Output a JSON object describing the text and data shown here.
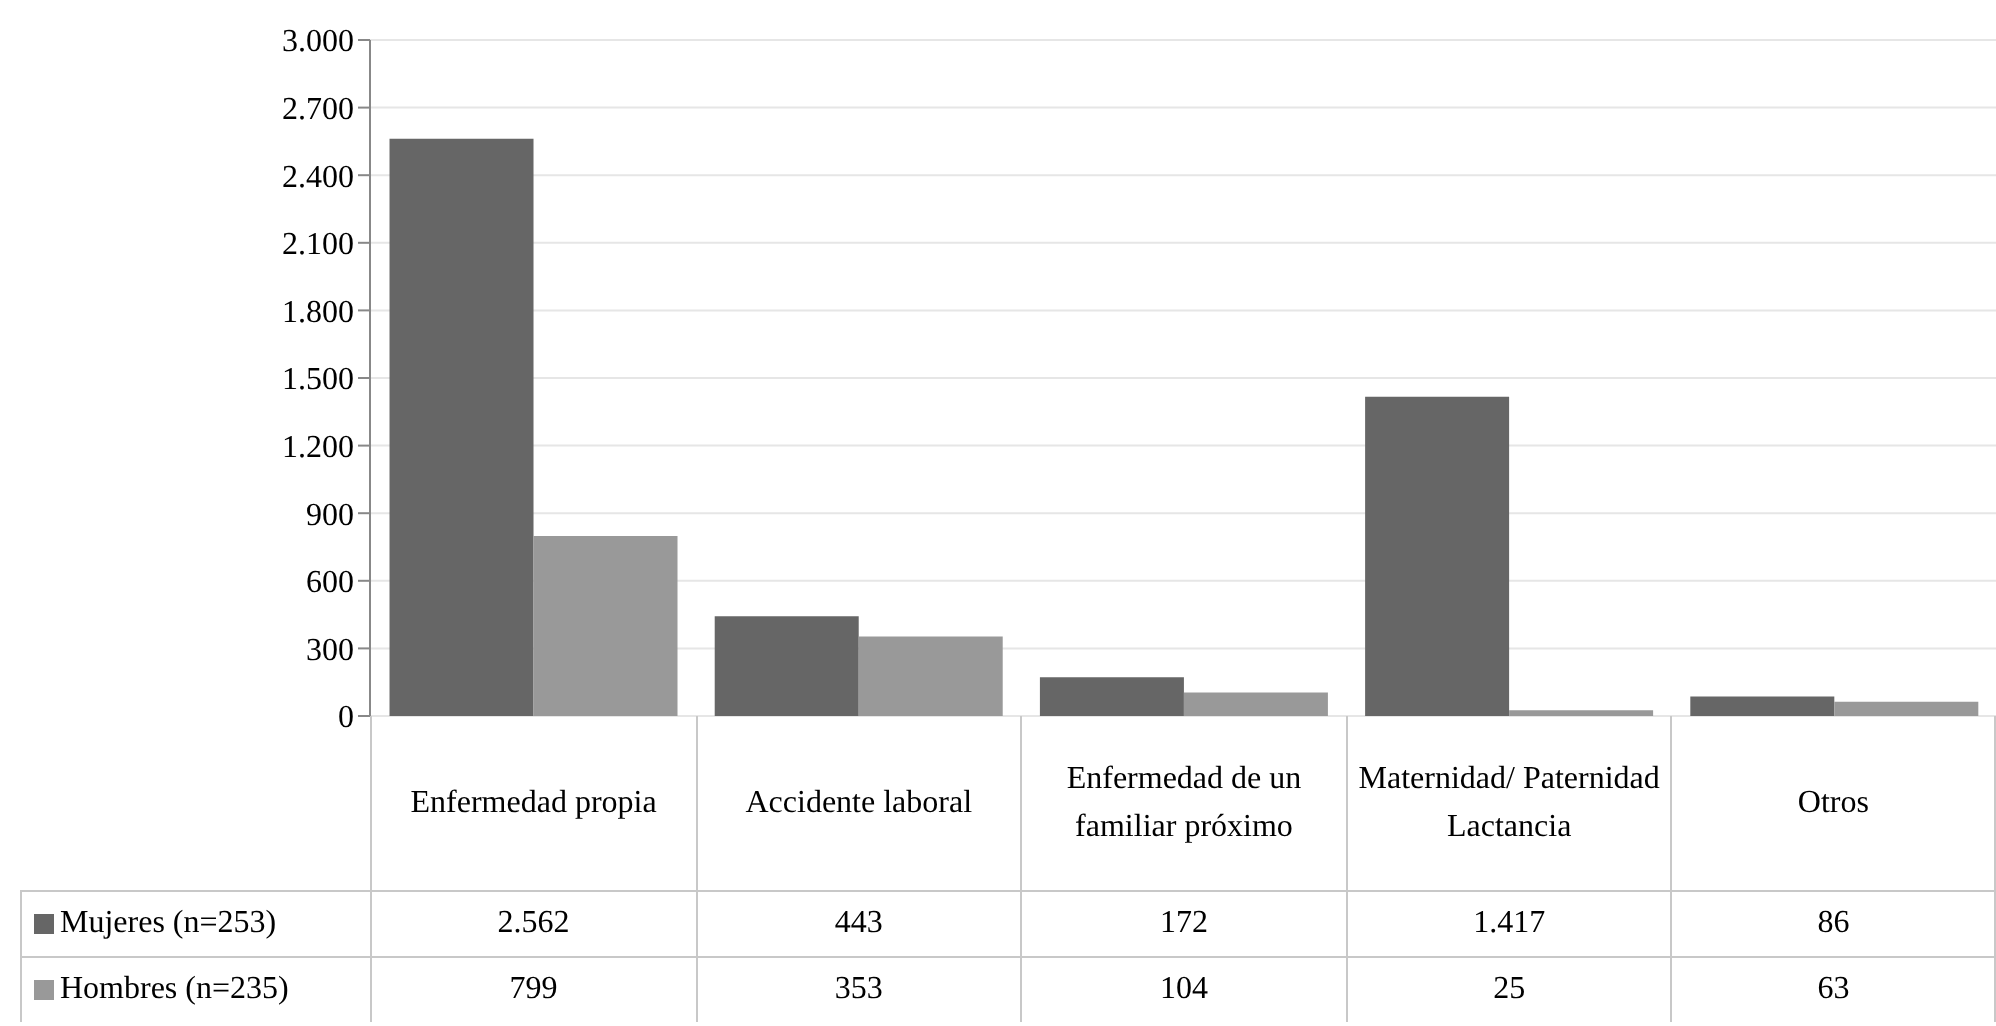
{
  "chart_data": {
    "type": "bar",
    "categories": [
      "Enfermedad propia",
      "Accidente laboral",
      "Enfermedad de un familiar próximo",
      "Maternidad/ Paternidad Lactancia",
      "Otros"
    ],
    "series": [
      {
        "name": "Mujeres (n=253)",
        "color": "#666666",
        "values": [
          2562,
          443,
          172,
          1417,
          86
        ],
        "value_labels": [
          "2.562",
          "443",
          "172",
          "1.417",
          "86"
        ]
      },
      {
        "name": "Hombres (n=235)",
        "color": "#999999",
        "values": [
          799,
          353,
          104,
          25,
          63
        ],
        "value_labels": [
          "799",
          "353",
          "104",
          "25",
          "63"
        ]
      }
    ],
    "ylim": [
      0,
      3000
    ],
    "yticks": [
      {
        "value": 0,
        "label": "0"
      },
      {
        "value": 300,
        "label": "300"
      },
      {
        "value": 600,
        "label": "600"
      },
      {
        "value": 900,
        "label": "900"
      },
      {
        "value": 1200,
        "label": "1.200"
      },
      {
        "value": 1500,
        "label": "1.500"
      },
      {
        "value": 1800,
        "label": "1.800"
      },
      {
        "value": 2100,
        "label": "2.100"
      },
      {
        "value": 2400,
        "label": "2.400"
      },
      {
        "value": 2700,
        "label": "2.700"
      },
      {
        "value": 3000,
        "label": "3.000"
      }
    ],
    "grid": "y",
    "legend": "bottom"
  }
}
